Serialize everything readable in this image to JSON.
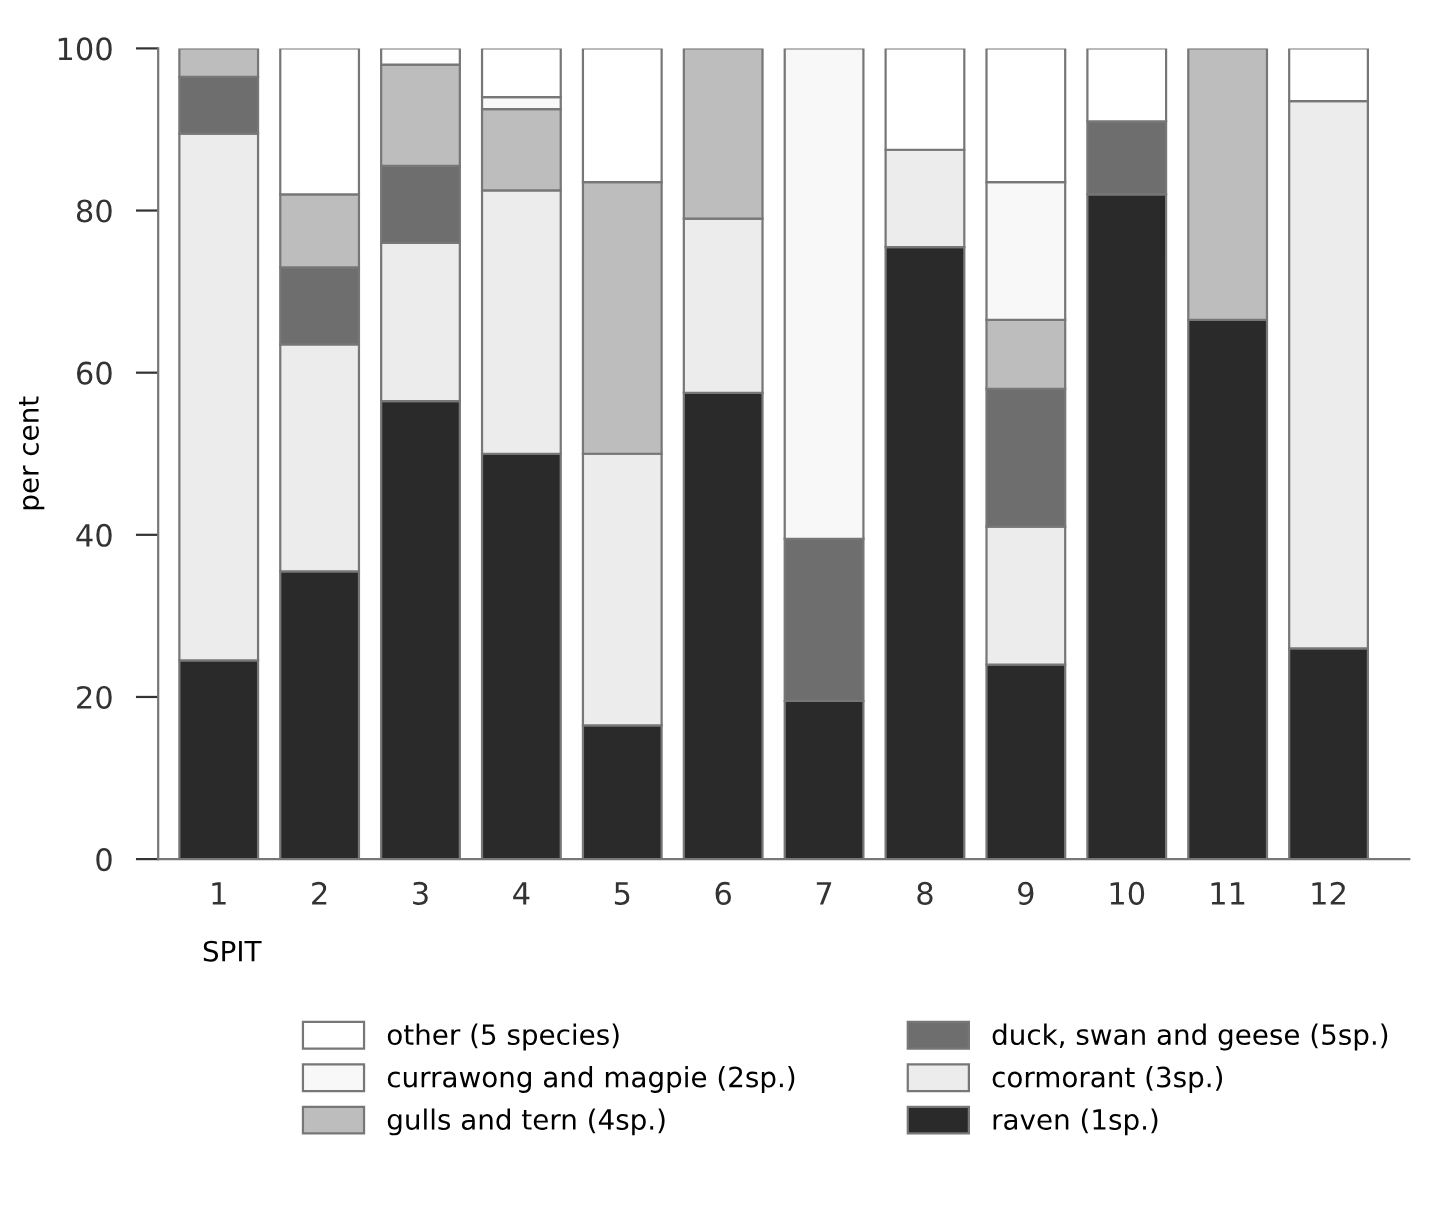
{
  "chart_data": {
    "type": "bar",
    "stacked": true,
    "xlabel": "SPIT",
    "ylabel": "per cent",
    "categories": [
      "1",
      "2",
      "3",
      "4",
      "5",
      "6",
      "7",
      "8",
      "9",
      "10",
      "11",
      "12"
    ],
    "ylim": [
      0,
      100
    ],
    "yticks": [
      0,
      20,
      40,
      60,
      80,
      100
    ],
    "grid": false,
    "legend": "bottom",
    "series": [
      {
        "name": "raven (1sp.)",
        "color": "#2a2a2a",
        "values": [
          24.5,
          35.5,
          56.5,
          50,
          16.5,
          57.5,
          19.5,
          75.5,
          24,
          82,
          66.5,
          26
        ]
      },
      {
        "name": "cormorant (3sp.)",
        "color": "#ececec",
        "values": [
          65,
          28,
          19.5,
          32.5,
          33.5,
          21.5,
          null,
          12,
          17,
          null,
          null,
          67.5
        ]
      },
      {
        "name": "duck, swan and geese (5sp.)",
        "color": "#6e6e6e",
        "values": [
          7,
          9.5,
          9.5,
          null,
          null,
          null,
          20,
          null,
          17,
          9,
          null,
          null
        ]
      },
      {
        "name": "gulls and tern (4sp.)",
        "color": "#bdbdbd",
        "values": [
          3.5,
          9,
          12.5,
          10,
          33.5,
          21,
          null,
          null,
          8.5,
          null,
          33.5,
          null
        ]
      },
      {
        "name": "currawong and magpie (2sp.)",
        "color": "#f8f8f8",
        "values": [
          null,
          null,
          null,
          1.5,
          null,
          null,
          60.5,
          null,
          17,
          null,
          null,
          null
        ]
      },
      {
        "name": "other (5 species)",
        "color": "#ffffff",
        "values": [
          null,
          18,
          2,
          6,
          16.5,
          null,
          null,
          12.5,
          16.5,
          9,
          null,
          6.5
        ]
      }
    ]
  }
}
